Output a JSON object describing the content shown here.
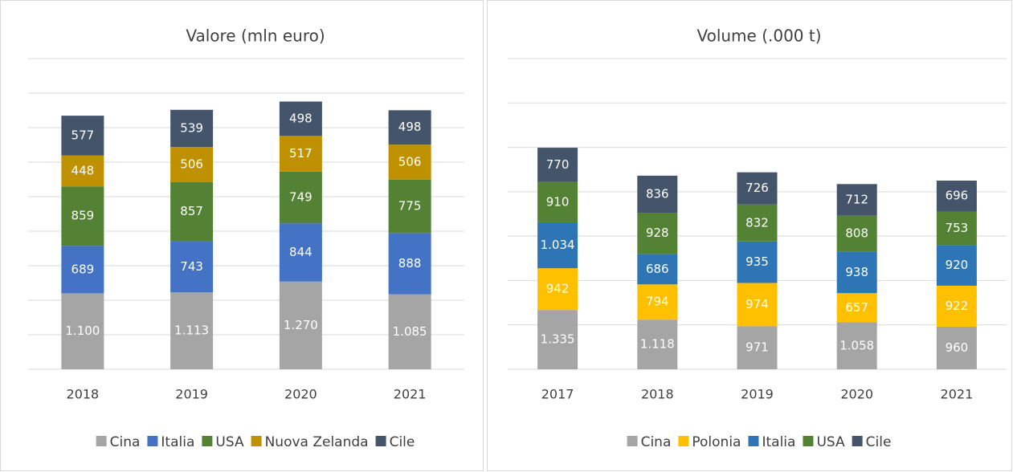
{
  "chart_data": [
    {
      "type": "stacked_bar",
      "title": "Valore (mln euro)",
      "categories": [
        "2018",
        "2019",
        "2020",
        "2021"
      ],
      "ylim": [
        0,
        4500
      ],
      "yticks": [
        0,
        500,
        1000,
        1500,
        2000,
        2500,
        3000,
        3500,
        4000,
        4500
      ],
      "grid": true,
      "legend": "bottom",
      "series": [
        {
          "name": "Cina",
          "color": "#a5a5a5",
          "values": [
            1100,
            1113,
            1270,
            1085
          ],
          "value_labels": [
            "1.100",
            "1.113",
            "1.270",
            "1.085"
          ]
        },
        {
          "name": "Italia",
          "color": "#4472c4",
          "values": [
            689,
            743,
            844,
            888
          ]
        },
        {
          "name": "USA",
          "color": "#548235",
          "values": [
            859,
            857,
            749,
            775
          ]
        },
        {
          "name": "Nuova Zelanda",
          "color": "#bf9000",
          "values": [
            448,
            506,
            517,
            506
          ]
        },
        {
          "name": "Cile",
          "color": "#44546a",
          "values": [
            577,
            539,
            498,
            498
          ]
        }
      ]
    },
    {
      "type": "stacked_bar",
      "title": "Volume (.000 t)",
      "categories": [
        "2017",
        "2018",
        "2019",
        "2020",
        "2021"
      ],
      "ylim": [
        0,
        7000
      ],
      "yticks": [
        0,
        1000,
        2000,
        3000,
        4000,
        5000,
        6000,
        7000
      ],
      "grid": true,
      "legend": "bottom",
      "series": [
        {
          "name": "Cina",
          "color": "#a5a5a5",
          "values": [
            1335,
            1118,
            971,
            1058,
            960
          ],
          "value_labels": [
            "1.335",
            "1.118",
            "971",
            "1.058",
            "960"
          ]
        },
        {
          "name": "Polonia",
          "color": "#ffc000",
          "values": [
            942,
            794,
            974,
            657,
            922
          ]
        },
        {
          "name": "Italia",
          "color": "#2e75b6",
          "values": [
            1034,
            686,
            935,
            938,
            920
          ],
          "value_labels": [
            "1.034",
            "686",
            "935",
            "938",
            "920"
          ]
        },
        {
          "name": "USA",
          "color": "#548235",
          "values": [
            910,
            928,
            832,
            808,
            753
          ]
        },
        {
          "name": "Cile",
          "color": "#44546a",
          "values": [
            770,
            836,
            726,
            712,
            696
          ]
        }
      ]
    }
  ]
}
